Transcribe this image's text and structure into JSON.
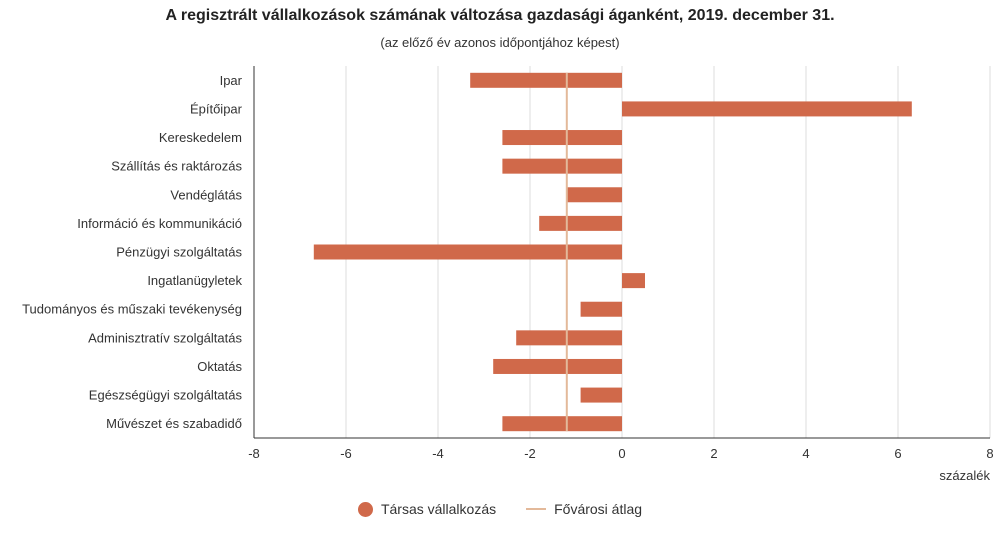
{
  "chart_data": {
    "type": "bar",
    "orientation": "horizontal",
    "title": "A regisztrált vállalkozások számának változása gazdasági áganként, 2019. december 31.",
    "subtitle": "(az előző év azonos időpontjához képest)",
    "categories": [
      "Ipar",
      "Építőipar",
      "Kereskedelem",
      "Szállítás és raktározás",
      "Vendéglátás",
      "Információ és kommunikáció",
      "Pénzügyi szolgáltatás",
      "Ingatlanügyletek",
      "Tudományos és műszaki tevékenység",
      "Adminisztratív szolgáltatás",
      "Oktatás",
      "Egészségügyi szolgáltatás",
      "Művészet és szabadidő"
    ],
    "series": [
      {
        "name": "Társas vállalkozás",
        "color": "#d0694a",
        "values": [
          -3.3,
          6.3,
          -2.6,
          -2.6,
          -1.2,
          -1.8,
          -6.7,
          0.5,
          -0.9,
          -2.3,
          -2.8,
          -0.9,
          -2.6
        ]
      }
    ],
    "reference_line": {
      "name": "Fővárosi átlag",
      "color": "#e3b99a",
      "value": -1.2
    },
    "xlabel": "százalék",
    "xlim": [
      -8,
      8
    ],
    "xticks": [
      -8,
      -6,
      -4,
      -2,
      0,
      2,
      4,
      6,
      8
    ],
    "grid": true,
    "legend_position": "bottom-center"
  }
}
